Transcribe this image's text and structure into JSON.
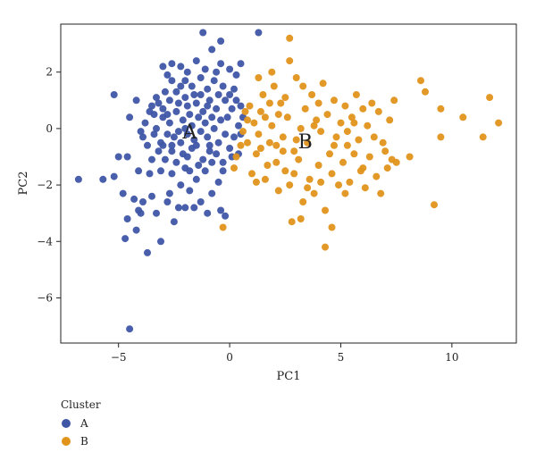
{
  "chart_data": {
    "type": "scatter",
    "xlabel": "PC1",
    "ylabel": "PC2",
    "xlim": [
      -7.6,
      12.9
    ],
    "ylim": [
      -7.6,
      3.7
    ],
    "x_ticks": [
      -5,
      0,
      5,
      10
    ],
    "y_ticks": [
      2,
      0,
      -2,
      -4,
      -6
    ],
    "grid": false,
    "legend": {
      "title": "Cluster",
      "placement": "bottom-left"
    },
    "series": [
      {
        "name": "A",
        "color": "#3f56a6",
        "points": [
          [
            -6.8,
            -1.8
          ],
          [
            -5.7,
            -1.8
          ],
          [
            -5.2,
            -1.7
          ],
          [
            -5.2,
            1.2
          ],
          [
            -5.0,
            -1.0
          ],
          [
            -4.8,
            -2.3
          ],
          [
            -4.7,
            -3.9
          ],
          [
            -4.6,
            -3.2
          ],
          [
            -4.5,
            -7.1
          ],
          [
            -4.3,
            -2.5
          ],
          [
            -4.2,
            -3.6
          ],
          [
            -4.1,
            -2.9
          ],
          [
            -4.0,
            -3.0
          ],
          [
            -3.9,
            -2.6
          ],
          [
            -3.7,
            -4.4
          ],
          [
            -3.5,
            -2.4
          ],
          [
            -3.3,
            -3.0
          ],
          [
            -3.1,
            -4.0
          ],
          [
            -3.0,
            -0.6
          ],
          [
            -2.8,
            -2.6
          ],
          [
            -2.5,
            -3.3
          ],
          [
            -2.3,
            -2.8
          ],
          [
            -2.0,
            -2.8
          ],
          [
            -1.6,
            -2.8
          ],
          [
            -1.3,
            -2.6
          ],
          [
            -1.0,
            -3.0
          ],
          [
            -0.4,
            -2.9
          ],
          [
            -0.2,
            -3.1
          ],
          [
            -0.8,
            -2.3
          ],
          [
            -1.8,
            -2.2
          ],
          [
            -2.2,
            -2.0
          ],
          [
            -2.7,
            -2.3
          ],
          [
            -3.6,
            -1.6
          ],
          [
            -4.1,
            -1.5
          ],
          [
            -4.6,
            -1.0
          ],
          [
            -3.9,
            -0.3
          ],
          [
            -3.5,
            -1.1
          ],
          [
            -4.2,
            1.0
          ],
          [
            -4.5,
            0.4
          ],
          [
            -3.1,
            -1.5
          ],
          [
            -2.6,
            -1.6
          ],
          [
            -2.0,
            -1.4
          ],
          [
            -1.5,
            -1.8
          ],
          [
            -1.1,
            -1.5
          ],
          [
            -0.5,
            -1.9
          ],
          [
            -0.3,
            -1.5
          ],
          [
            -0.6,
            -0.9
          ],
          [
            -0.9,
            -0.6
          ],
          [
            -1.2,
            -1.1
          ],
          [
            -1.7,
            -0.7
          ],
          [
            -2.1,
            -0.9
          ],
          [
            -2.6,
            -0.8
          ],
          [
            -3.1,
            -0.5
          ],
          [
            -3.4,
            -0.2
          ],
          [
            -3.8,
            0.2
          ],
          [
            -3.6,
            0.6
          ],
          [
            -3.2,
            0.9
          ],
          [
            -2.9,
            1.3
          ],
          [
            -2.6,
            1.7
          ],
          [
            -2.2,
            2.2
          ],
          [
            -1.9,
            2.0
          ],
          [
            -1.5,
            2.4
          ],
          [
            -0.8,
            2.8
          ],
          [
            -0.4,
            2.3
          ],
          [
            0.0,
            2.1
          ],
          [
            0.3,
            1.9
          ],
          [
            0.5,
            2.3
          ],
          [
            -1.2,
            3.4
          ],
          [
            -0.4,
            3.1
          ],
          [
            1.3,
            3.4
          ],
          [
            -2.6,
            2.3
          ],
          [
            -2.8,
            1.9
          ],
          [
            -3.0,
            2.2
          ],
          [
            -2.4,
            1.3
          ],
          [
            -2.0,
            1.1
          ],
          [
            -1.7,
            1.5
          ],
          [
            -1.3,
            1.8
          ],
          [
            -1.0,
            1.4
          ],
          [
            -0.7,
            1.7
          ],
          [
            -0.3,
            1.5
          ],
          [
            0.0,
            1.2
          ],
          [
            0.3,
            1.0
          ],
          [
            0.5,
            0.8
          ],
          [
            0.6,
            0.4
          ],
          [
            0.4,
            0.1
          ],
          [
            0.2,
            -0.3
          ],
          [
            0.0,
            -0.7
          ],
          [
            -0.2,
            -0.2
          ],
          [
            -0.4,
            0.3
          ],
          [
            -0.6,
            0.7
          ],
          [
            -0.9,
            1.0
          ],
          [
            -1.2,
            0.6
          ],
          [
            -1.5,
            0.9
          ],
          [
            -1.8,
            0.5
          ],
          [
            -2.1,
            0.3
          ],
          [
            -2.4,
            0.6
          ],
          [
            -2.7,
            0.2
          ],
          [
            -3.0,
            0.4
          ],
          [
            -3.3,
            0.0
          ],
          [
            -2.5,
            -0.3
          ],
          [
            -2.2,
            -0.5
          ],
          [
            -1.9,
            -0.2
          ],
          [
            -1.6,
            -0.4
          ],
          [
            -1.3,
            -0.1
          ],
          [
            -1.0,
            -0.3
          ],
          [
            -0.7,
            0.0
          ],
          [
            -1.1,
            0.2
          ],
          [
            -1.4,
            0.4
          ],
          [
            -1.7,
            0.1
          ],
          [
            -2.0,
            0.0
          ],
          [
            -2.3,
            -0.1
          ],
          [
            -2.8,
            -0.2
          ],
          [
            -3.2,
            -0.8
          ],
          [
            -2.9,
            -1.1
          ],
          [
            -2.4,
            -1.2
          ],
          [
            -1.9,
            -1.0
          ],
          [
            -1.4,
            -1.3
          ],
          [
            -0.8,
            -1.2
          ],
          [
            -0.5,
            -0.5
          ],
          [
            -0.1,
            0.4
          ],
          [
            0.1,
            0.7
          ],
          [
            -0.2,
            1.0
          ],
          [
            -0.5,
            1.2
          ],
          [
            -0.8,
            0.4
          ],
          [
            -1.6,
            1.2
          ],
          [
            -1.9,
            0.8
          ],
          [
            -2.3,
            0.9
          ],
          [
            -2.7,
            1.0
          ],
          [
            -3.0,
            0.7
          ],
          [
            -3.4,
            0.5
          ],
          [
            -3.7,
            -0.6
          ],
          [
            -4.0,
            -0.1
          ],
          [
            -3.3,
            1.1
          ],
          [
            -2.0,
            1.7
          ],
          [
            -1.1,
            2.1
          ],
          [
            -0.6,
            2.0
          ],
          [
            0.2,
            1.4
          ],
          [
            0.5,
            -0.2
          ],
          [
            0.4,
            -0.9
          ],
          [
            -0.3,
            -1.2
          ],
          [
            -1.5,
            -0.6
          ],
          [
            -2.6,
            -0.6
          ],
          [
            -3.5,
            0.8
          ],
          [
            -1.3,
            1.2
          ],
          [
            -0.9,
            -0.8
          ],
          [
            -2.2,
            1.5
          ],
          [
            -1.0,
            0.8
          ],
          [
            -2.8,
            0.5
          ],
          [
            -1.8,
            -1.5
          ],
          [
            0.1,
            -1.0
          ]
        ]
      },
      {
        "name": "B",
        "color": "#e0941c",
        "points": [
          [
            -0.3,
            -3.5
          ],
          [
            0.2,
            -1.4
          ],
          [
            0.3,
            -1.0
          ],
          [
            0.5,
            -0.6
          ],
          [
            0.6,
            -0.1
          ],
          [
            0.8,
            0.3
          ],
          [
            0.9,
            0.8
          ],
          [
            1.0,
            -1.6
          ],
          [
            1.2,
            -0.9
          ],
          [
            1.3,
            -0.2
          ],
          [
            1.4,
            0.6
          ],
          [
            1.5,
            1.2
          ],
          [
            1.6,
            -1.8
          ],
          [
            1.8,
            -0.5
          ],
          [
            1.9,
            0.1
          ],
          [
            2.0,
            1.5
          ],
          [
            2.1,
            -1.2
          ],
          [
            2.2,
            -2.2
          ],
          [
            2.3,
            0.9
          ],
          [
            2.4,
            -0.3
          ],
          [
            2.5,
            -1.5
          ],
          [
            2.6,
            0.4
          ],
          [
            2.7,
            -2.0
          ],
          [
            2.8,
            -3.3
          ],
          [
            2.9,
            -0.8
          ],
          [
            3.0,
            1.8
          ],
          [
            3.1,
            -1.1
          ],
          [
            3.2,
            0.0
          ],
          [
            3.3,
            -2.6
          ],
          [
            3.4,
            0.7
          ],
          [
            3.5,
            -0.5
          ],
          [
            3.6,
            -1.8
          ],
          [
            3.7,
            1.2
          ],
          [
            3.8,
            -2.3
          ],
          [
            3.9,
            0.3
          ],
          [
            4.0,
            -1.3
          ],
          [
            4.1,
            -0.1
          ],
          [
            4.2,
            1.6
          ],
          [
            4.3,
            -2.9
          ],
          [
            4.4,
            0.5
          ],
          [
            4.5,
            -0.9
          ],
          [
            4.6,
            -1.6
          ],
          [
            4.7,
            1.0
          ],
          [
            4.8,
            -0.3
          ],
          [
            4.9,
            -2.0
          ],
          [
            5.0,
            0.2
          ],
          [
            5.1,
            -1.2
          ],
          [
            5.2,
            0.8
          ],
          [
            5.3,
            -0.6
          ],
          [
            5.4,
            -1.9
          ],
          [
            5.5,
            0.4
          ],
          [
            5.6,
            -0.9
          ],
          [
            5.7,
            1.2
          ],
          [
            5.8,
            -0.4
          ],
          [
            5.9,
            -1.5
          ],
          [
            6.0,
            0.7
          ],
          [
            6.1,
            -2.1
          ],
          [
            6.2,
            0.1
          ],
          [
            6.3,
            -1.0
          ],
          [
            6.5,
            -0.3
          ],
          [
            6.6,
            -1.7
          ],
          [
            6.7,
            0.6
          ],
          [
            6.8,
            -2.3
          ],
          [
            7.0,
            -0.8
          ],
          [
            7.2,
            0.3
          ],
          [
            7.3,
            -1.1
          ],
          [
            7.4,
            1.0
          ],
          [
            7.5,
            -1.2
          ],
          [
            8.1,
            -1.0
          ],
          [
            8.6,
            1.7
          ],
          [
            8.8,
            1.3
          ],
          [
            9.2,
            -2.7
          ],
          [
            9.5,
            0.7
          ],
          [
            9.5,
            -0.3
          ],
          [
            10.5,
            0.4
          ],
          [
            11.4,
            -0.3
          ],
          [
            11.7,
            1.1
          ],
          [
            12.1,
            0.2
          ],
          [
            2.7,
            3.2
          ],
          [
            2.7,
            2.4
          ],
          [
            1.9,
            2.0
          ],
          [
            1.3,
            1.8
          ],
          [
            2.2,
            0.5
          ],
          [
            1.1,
            0.2
          ],
          [
            0.8,
            -0.5
          ],
          [
            1.7,
            -1.3
          ],
          [
            2.9,
            -1.6
          ],
          [
            3.5,
            -2.1
          ],
          [
            4.3,
            -4.2
          ],
          [
            4.6,
            -3.5
          ],
          [
            3.2,
            -3.2
          ],
          [
            2.4,
            -0.8
          ],
          [
            1.8,
            0.9
          ],
          [
            3.8,
            0.1
          ],
          [
            5.2,
            -2.3
          ],
          [
            6.0,
            -1.4
          ],
          [
            6.4,
            0.9
          ],
          [
            7.1,
            -1.4
          ],
          [
            4.0,
            0.9
          ],
          [
            2.1,
            -0.6
          ],
          [
            1.4,
            -0.7
          ],
          [
            0.7,
            0.6
          ],
          [
            1.6,
            0.4
          ],
          [
            3.0,
            -0.4
          ],
          [
            4.7,
            -0.6
          ],
          [
            5.6,
            0.2
          ],
          [
            6.9,
            -0.5
          ],
          [
            3.3,
            1.5
          ],
          [
            2.5,
            1.1
          ],
          [
            1.2,
            -1.9
          ],
          [
            5.3,
            -0.1
          ],
          [
            4.1,
            -1.9
          ]
        ]
      }
    ],
    "annotations": [
      {
        "text": "A",
        "x": -1.8,
        "y": -0.1
      },
      {
        "text": "B",
        "x": 3.4,
        "y": -0.45
      }
    ]
  }
}
